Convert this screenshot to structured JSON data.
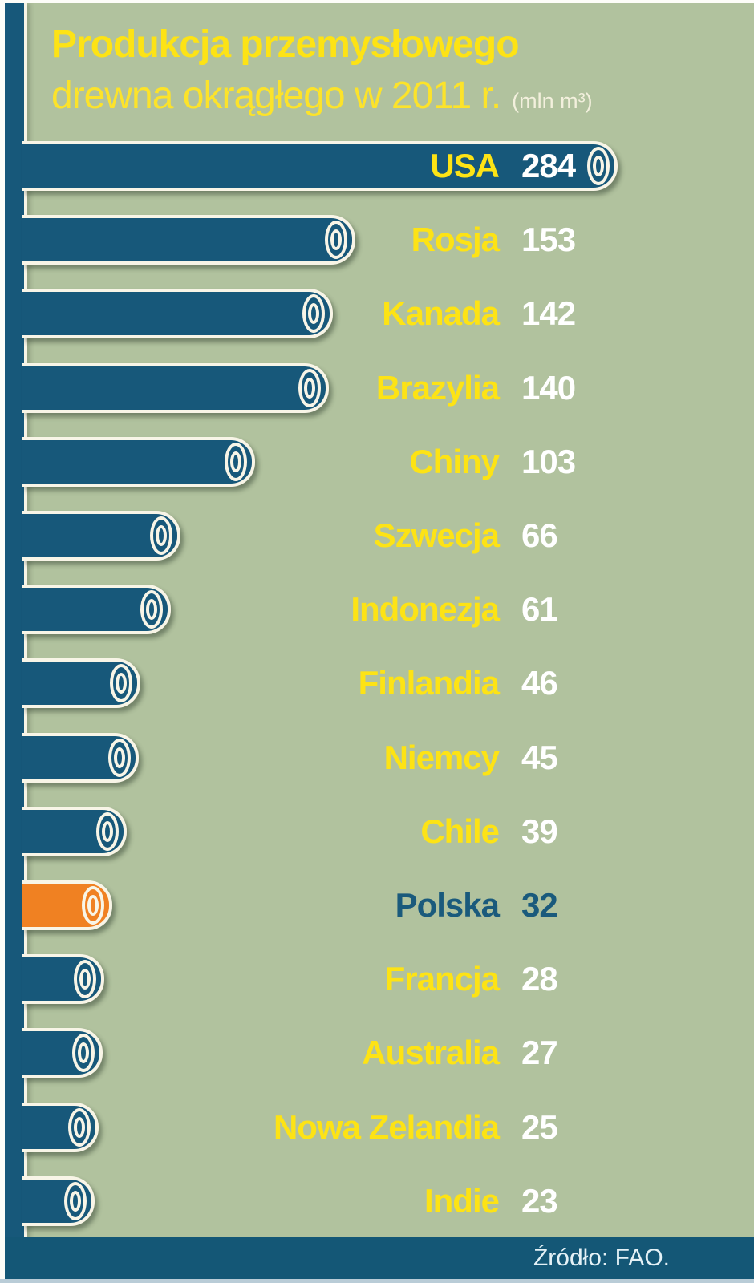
{
  "header": {
    "title_line1": "Produkcja przemysłowego",
    "title_line2": "drewna okrągłego w 2011 r.",
    "unit": "(mln m³)"
  },
  "footer": {
    "source": "Źródło: FAO."
  },
  "chart_data": {
    "type": "bar",
    "orientation": "horizontal",
    "title": "Produkcja przemysłowego drewna okrągłego w 2011 r.",
    "unit": "mln m³",
    "categories": [
      "USA",
      "Rosja",
      "Kanada",
      "Brazylia",
      "Chiny",
      "Szwecja",
      "Indonezja",
      "Finlandia",
      "Niemcy",
      "Chile",
      "Polska",
      "Francja",
      "Australia",
      "Nowa Zelandia",
      "Indie"
    ],
    "values": [
      284,
      153,
      142,
      140,
      103,
      66,
      61,
      46,
      45,
      39,
      32,
      28,
      27,
      25,
      23
    ],
    "highlight_category": "Polska",
    "value_range": [
      0,
      300
    ],
    "grid": false,
    "legend": false,
    "source": "Źródło: FAO.",
    "colors": {
      "bar": "#17587a",
      "highlight_bar": "#f08122",
      "category_label": "#fde315",
      "value_label": "#ffffff",
      "highlight_label": "#1a5a7c",
      "background": "#b1c29e",
      "outline": "#f8f5e7",
      "source_band": "#145776"
    }
  }
}
